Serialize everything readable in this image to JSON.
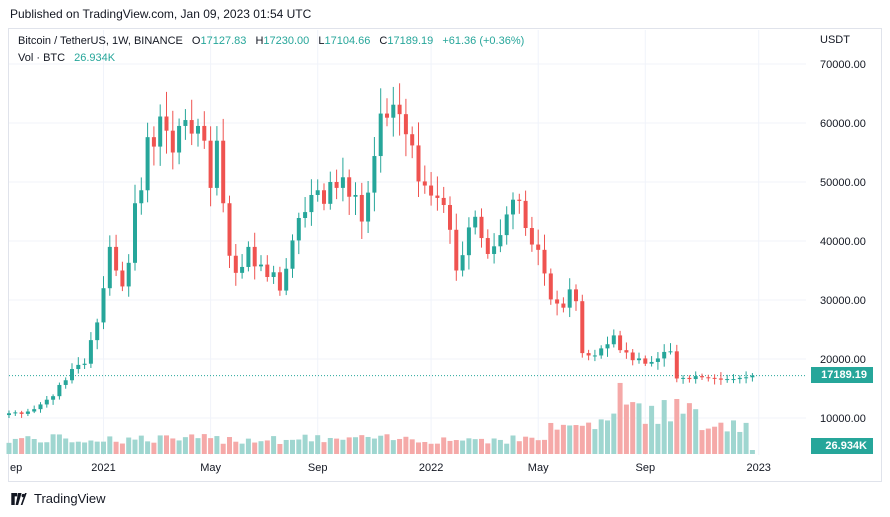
{
  "published": "Published on TradingView.com, Jan 09, 2023 01:54 UTC",
  "legend": {
    "symbol": "Bitcoin / TetherUS, 1W, BINANCE",
    "o_label": "O",
    "o_value": "17127.83",
    "h_label": "H",
    "h_value": "17230.00",
    "l_label": "L",
    "l_value": "17104.66",
    "c_label": "C",
    "c_value": "17189.19",
    "change": "+61.36 (+0.36%)",
    "vol_label": "Vol · BTC",
    "vol_value": "26.934K"
  },
  "unit": "USDT",
  "last_price_badge": "17189.19",
  "last_volume_badge": "26.934K",
  "brand": "TradingView",
  "colors": {
    "up": "#26a69a",
    "down": "#ef5350",
    "vol_up": "#9fd6d0",
    "vol_down": "#f5a9a8",
    "grid": "#f0f3fa"
  },
  "chart_data": {
    "type": "candlestick",
    "title": "Bitcoin / TetherUS, 1W, BINANCE",
    "ylabel": "USDT",
    "ylim": [
      5000,
      71500
    ],
    "y_ticks": [
      "70000.00",
      "60000.00",
      "50000.00",
      "40000.00",
      "30000.00",
      "20000.00",
      "10000.00"
    ],
    "y_tick_values": [
      70000,
      60000,
      50000,
      40000,
      30000,
      20000,
      10000
    ],
    "x_ticks": [
      "ep",
      "2021",
      "May",
      "Sep",
      "2022",
      "May",
      "Sep",
      "2023"
    ],
    "x_tick_weeks": [
      -1,
      15,
      32,
      49,
      67,
      84,
      101,
      119
    ],
    "last_close_line": 17189.19,
    "weekly_close": [
      10800,
      10950,
      10700,
      11100,
      11500,
      12300,
      13100,
      13700,
      15600,
      16400,
      18300,
      19000,
      19200,
      23200,
      26200,
      32000,
      39000,
      35000,
      32300,
      36300,
      46400,
      48600,
      57600,
      56000,
      61100,
      58700,
      55000,
      59500,
      60500,
      58200,
      59500,
      57000,
      49000,
      57000,
      46400,
      37500,
      34600,
      35600,
      39000,
      35700,
      36000,
      33900,
      34700,
      31600,
      35300,
      40100,
      43900,
      44900,
      47800,
      48600,
      46300,
      50000,
      49000,
      50800,
      47500,
      47800,
      43300,
      48200,
      54400,
      61600,
      60900,
      63100,
      61500,
      58100,
      56200,
      50100,
      49400,
      47700,
      47300,
      46100,
      41900,
      35000,
      37600,
      42300,
      44100,
      40500,
      37800,
      39100,
      41000,
      44500,
      47000,
      46800,
      42200,
      39400,
      38500,
      34500,
      30100,
      29400,
      28700,
      31800,
      29800,
      21000,
      20600,
      20600,
      21800,
      22500,
      24000,
      21500,
      21100,
      19800,
      20100,
      19200,
      19500,
      20100,
      21200,
      21300,
      16700,
      16800,
      16600,
      17100,
      16900,
      16800,
      16700,
      16500,
      16600,
      16600,
      16800,
      16900,
      17189
    ]
  }
}
